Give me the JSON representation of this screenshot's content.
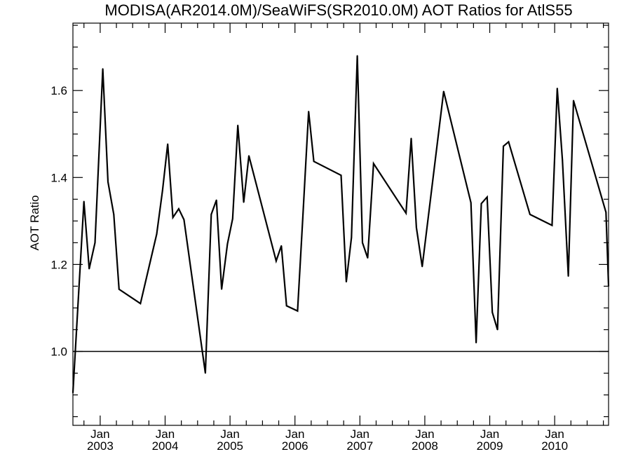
{
  "chart_data": {
    "type": "line",
    "title": "MODISA(AR2014.0M)/SeaWiFS(SR2010.0M)  AOT Ratios for AtlS55",
    "xlabel": "",
    "ylabel": "AOT Ratio",
    "xlim": [
      2002.58,
      2010.83
    ],
    "ylim": [
      0.83,
      1.755
    ],
    "x_ticks": [
      {
        "x": 2003.0,
        "month": "Jan",
        "year": "2003"
      },
      {
        "x": 2004.0,
        "month": "Jan",
        "year": "2004"
      },
      {
        "x": 2005.0,
        "month": "Jan",
        "year": "2005"
      },
      {
        "x": 2006.0,
        "month": "Jan",
        "year": "2006"
      },
      {
        "x": 2007.0,
        "month": "Jan",
        "year": "2007"
      },
      {
        "x": 2008.0,
        "month": "Jan",
        "year": "2008"
      },
      {
        "x": 2009.0,
        "month": "Jan",
        "year": "2009"
      },
      {
        "x": 2010.0,
        "month": "Jan",
        "year": "2010"
      }
    ],
    "y_ticks": [
      {
        "y": 1.0,
        "label": "1.0"
      },
      {
        "y": 1.2,
        "label": "1.2"
      },
      {
        "y": 1.4,
        "label": "1.4"
      },
      {
        "y": 1.6,
        "label": "1.6"
      }
    ],
    "reference_line": {
      "y": 1.0
    },
    "series": [
      {
        "x": [
          2002.58,
          2002.75,
          2002.83,
          2002.92,
          2003.04,
          2003.12,
          2003.21,
          2003.29,
          2003.62,
          2003.87,
          2003.96,
          2004.04,
          2004.12,
          2004.21,
          2004.29,
          2004.62,
          2004.71,
          2004.79,
          2004.87,
          2004.96,
          2005.04,
          2005.12,
          2005.21,
          2005.29,
          2005.71,
          2005.79,
          2005.87,
          2006.04,
          2006.12,
          2006.21,
          2006.29,
          2006.71,
          2006.79,
          2006.87,
          2006.96,
          2007.04,
          2007.12,
          2007.21,
          2007.71,
          2007.79,
          2007.87,
          2007.96,
          2008.29,
          2008.71,
          2008.79,
          2008.87,
          2008.96,
          2009.04,
          2009.12,
          2009.21,
          2009.29,
          2009.62,
          2009.96,
          2010.04,
          2010.12,
          2010.21,
          2010.29,
          2010.79,
          2010.83
        ],
        "values": [
          0.905,
          1.345,
          1.19,
          1.25,
          1.65,
          1.39,
          1.315,
          1.143,
          1.11,
          1.27,
          1.37,
          1.477,
          1.308,
          1.328,
          1.303,
          0.95,
          1.315,
          1.348,
          1.143,
          1.247,
          1.305,
          1.52,
          1.343,
          1.45,
          1.208,
          1.243,
          1.105,
          1.093,
          1.305,
          1.552,
          1.437,
          1.405,
          1.16,
          1.262,
          1.68,
          1.25,
          1.215,
          1.432,
          1.318,
          1.49,
          1.285,
          1.195,
          1.598,
          1.342,
          1.02,
          1.34,
          1.355,
          1.09,
          1.05,
          1.472,
          1.482,
          1.315,
          1.29,
          1.605,
          1.44,
          1.173,
          1.577,
          1.32,
          1.15
        ]
      }
    ]
  }
}
